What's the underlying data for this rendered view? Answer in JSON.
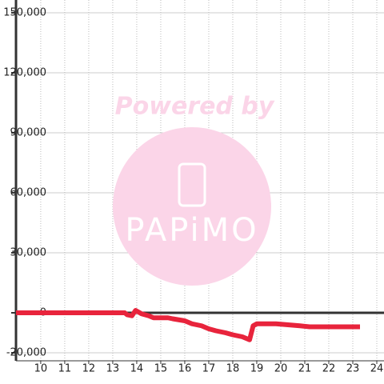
{
  "chart_data": {
    "type": "line",
    "x": [
      8.97,
      13.5,
      13.6,
      13.8,
      13.95,
      14.2,
      14.5,
      14.7,
      15.3,
      15.5,
      16,
      16.3,
      16.7,
      17,
      17.3,
      17.7,
      18,
      18.4,
      18.7,
      18.85,
      19,
      19.8,
      20.3,
      20.8,
      21.2,
      22,
      23.3
    ],
    "series": [
      {
        "color": "#e8243c",
        "values": [
          0,
          0,
          -1000,
          -1500,
          1200,
          -500,
          -1500,
          -2500,
          -2500,
          -3000,
          -4000,
          -5500,
          -6500,
          -8000,
          -9000,
          -10000,
          -11000,
          -12000,
          -13500,
          -6500,
          -5500,
          -5500,
          -6000,
          -6500,
          -7000,
          -7000,
          -7000
        ]
      }
    ],
    "xlim": [
      8.97,
      24.3
    ],
    "ylim": [
      -24000,
      150000
    ],
    "xticks": [
      10,
      11,
      12,
      13,
      14,
      15,
      16,
      17,
      18,
      19,
      20,
      21,
      22,
      23,
      24
    ],
    "yticks": [
      {
        "value": -20000,
        "label": "-20,000"
      },
      0,
      {
        "value": 30000,
        "label": "30,000"
      },
      {
        "value": 60000,
        "label": "60,000"
      },
      {
        "value": 90000,
        "label": "90,000"
      },
      {
        "value": 120000,
        "label": "120,000"
      },
      {
        "value": 150000,
        "label": "150,000"
      }
    ],
    "grid": true,
    "watermark": {
      "text": "Powered by",
      "logo": "PAPiMO"
    }
  }
}
